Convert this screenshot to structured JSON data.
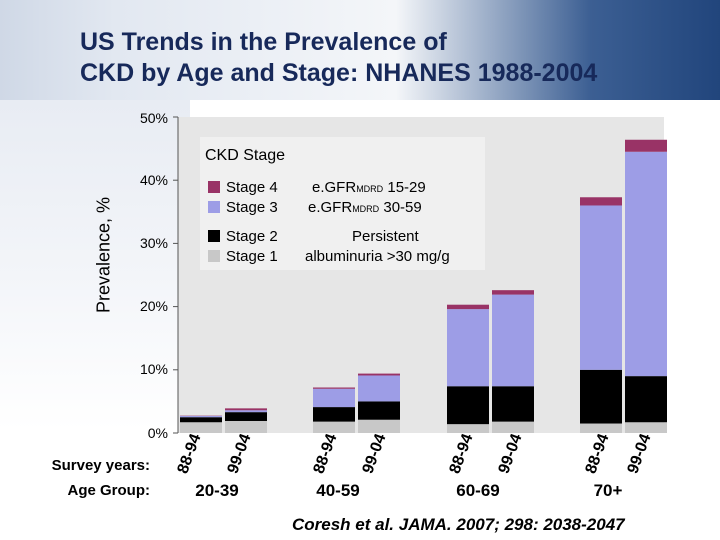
{
  "slide": {
    "title": "US Trends in the Prevalence of\nCKD by Age and Stage: NHANES 1988-2004",
    "survey_years_label": "Survey years:",
    "age_group_label": "Age Group:",
    "citation": "Coresh et al. JAMA. 2007; 298: 2038-2047"
  },
  "colors": {
    "stage1": "#c8c8c8",
    "stage2": "#000000",
    "stage3": "#9d9de6",
    "stage4": "#993366",
    "plot_background": "#e6e6e6"
  },
  "legend": {
    "title": "CKD Stage",
    "stage4_label": "Stage 4",
    "stage3_label": "Stage 3",
    "stage2_label": "Stage 2",
    "stage1_label": "Stage 1",
    "stage4_desc_main": "e.GFR",
    "stage4_desc_sub": "MDRD",
    "stage4_desc_range": " 15-29",
    "stage3_desc_main": "e.GFR",
    "stage3_desc_sub": "MDRD",
    "stage3_desc_range": "  30-59",
    "persistent": "Persistent",
    "albuminuria": "albuminuria >30 mg/g"
  },
  "chart_data": {
    "type": "bar",
    "stacked": true,
    "title": "US Trends in the Prevalence of CKD by Age and Stage: NHANES 1988-2004",
    "ylabel": "Prevalence, %",
    "xlabel": "Survey years / Age Group",
    "ylim": [
      0,
      50
    ],
    "yticks": [
      "0%",
      "10%",
      "20%",
      "30%",
      "40%",
      "50%"
    ],
    "tick_values": [
      0,
      10,
      20,
      30,
      40,
      50
    ],
    "groups": [
      "20-39",
      "40-59",
      "60-69",
      "70+"
    ],
    "categories": [
      "88-94",
      "99-04",
      "88-94",
      "99-04",
      "88-94",
      "99-04",
      "88-94",
      "99-04"
    ],
    "series": [
      {
        "name": "Stage 1",
        "values": [
          1.7,
          1.9,
          1.8,
          2.1,
          1.4,
          1.8,
          1.5,
          1.7
        ]
      },
      {
        "name": "Stage 2",
        "values": [
          0.8,
          1.4,
          2.3,
          2.9,
          6.0,
          5.6,
          8.5,
          7.3
        ]
      },
      {
        "name": "Stage 3",
        "values": [
          0.2,
          0.3,
          2.9,
          4.1,
          12.2,
          14.5,
          26.0,
          35.5
        ]
      },
      {
        "name": "Stage 4",
        "values": [
          0.05,
          0.3,
          0.2,
          0.3,
          0.7,
          0.7,
          1.3,
          1.9
        ]
      }
    ]
  }
}
